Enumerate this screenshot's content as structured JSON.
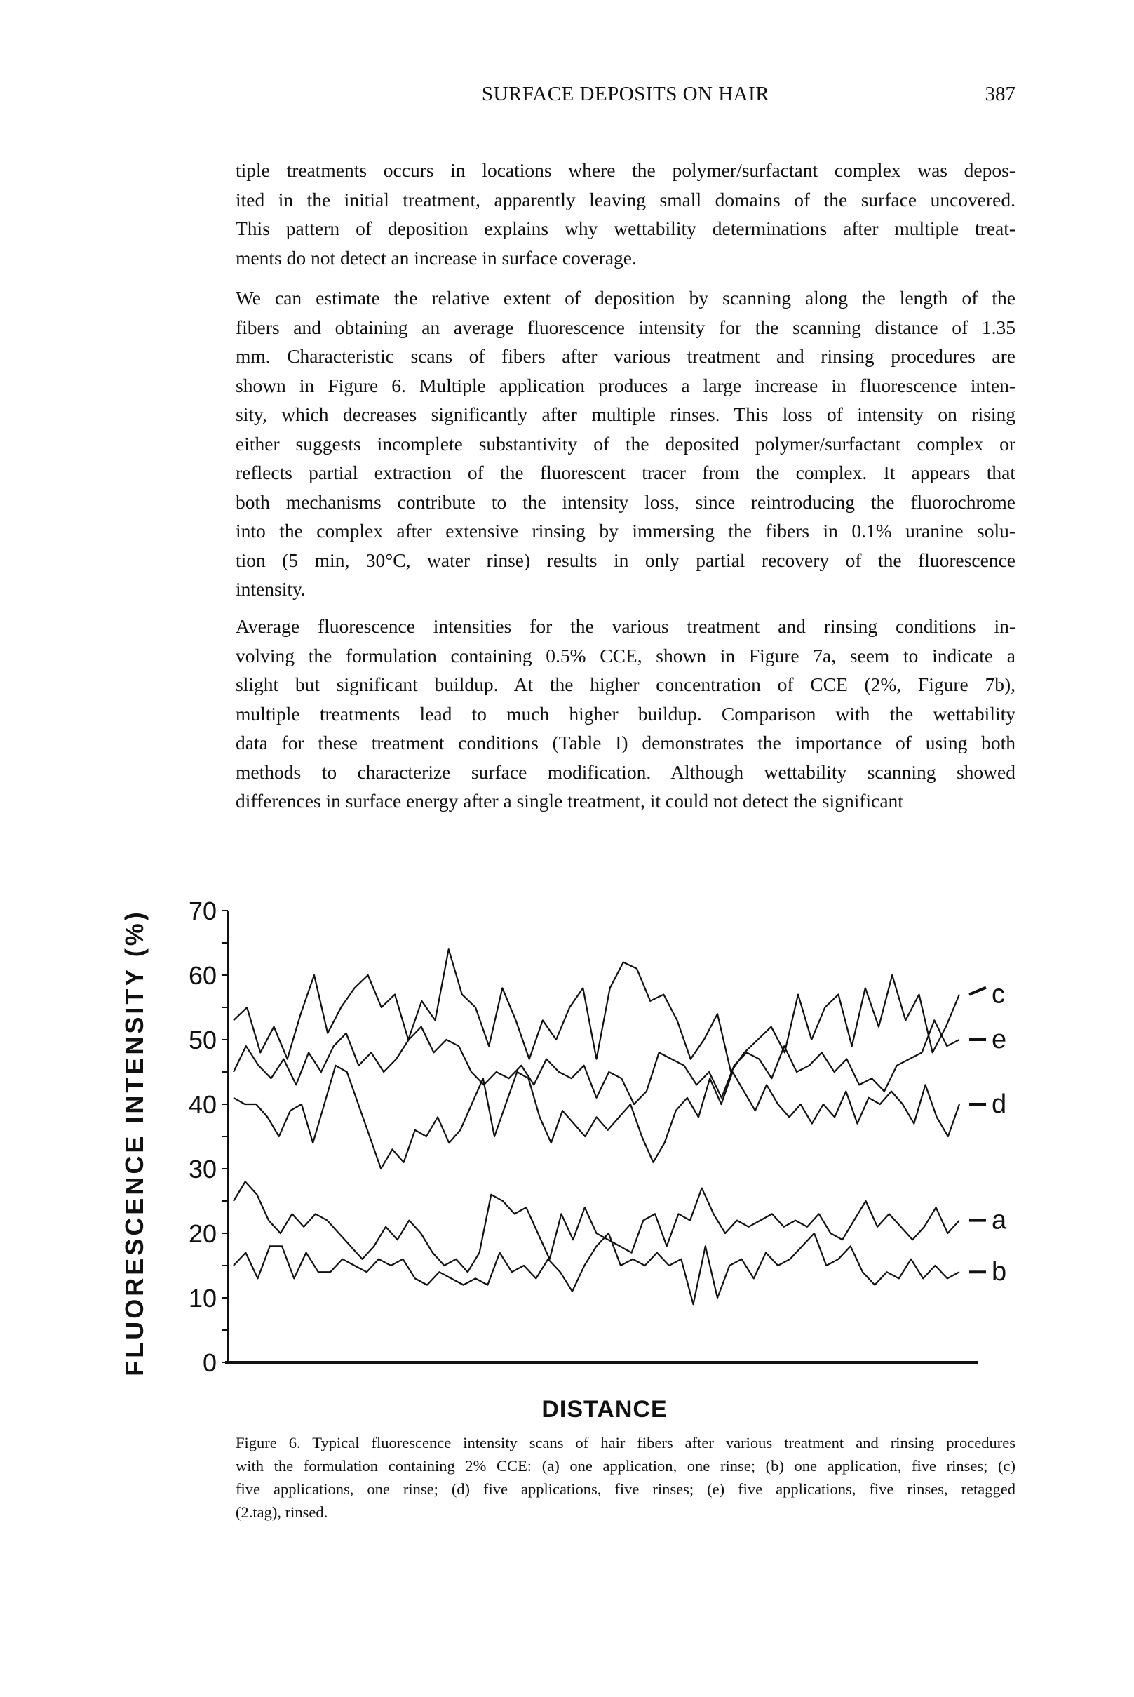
{
  "header": {
    "running_title": "SURFACE DEPOSITS ON HAIR",
    "page_number": "387"
  },
  "body": {
    "paragraphs": [
      [
        "tiple treatments occurs in locations where the polymer/surfactant complex was depos-",
        "ited in the initial treatment, apparently leaving small domains of the surface uncovered.",
        "This pattern of deposition explains why wettability determinations after multiple treat-",
        "ments do not detect an increase in surface coverage."
      ],
      [
        "We can estimate the relative extent of deposition by scanning along the length of the",
        "fibers and obtaining an average fluorescence intensity for the scanning distance of 1.35",
        "mm. Characteristic scans of fibers after various treatment and rinsing procedures are",
        "shown in Figure 6. Multiple application produces a large increase in fluorescence inten-",
        "sity, which decreases significantly after multiple rinses. This loss of intensity on rising",
        "either suggests incomplete substantivity of the deposited polymer/surfactant complex or",
        "reflects partial extraction of the fluorescent tracer from the complex. It appears that",
        "both mechanisms contribute to the intensity loss, since reintroducing the fluorochrome",
        "into the complex after extensive rinsing by immersing the fibers in 0.1% uranine solu-",
        "tion (5 min, 30°C, water rinse) results in only partial recovery of the fluorescence",
        "intensity."
      ],
      [
        "Average fluorescence intensities for the various treatment and rinsing conditions in-",
        "volving the formulation containing 0.5% CCE, shown in Figure 7a, seem to indicate a",
        "slight but significant buildup. At the higher concentration of CCE (2%, Figure 7b),",
        "multiple treatments lead to much higher buildup. Comparison with the wettability",
        "data for these treatment conditions (Table I) demonstrates the importance of using both",
        "methods to characterize surface modification. Although wettability scanning showed",
        "differences in surface energy after a single treatment, it could not detect the significant"
      ]
    ]
  },
  "figure": {
    "caption_lines": [
      "Figure 6.  Typical fluorescence intensity scans of hair fibers after various treatment and rinsing procedures",
      "with the formulation containing 2% CCE: (a) one application, one rinse; (b) one application, five rinses; (c)",
      "five applications, one rinse; (d) five applications, five rinses; (e) five applications, five rinses, retagged",
      "(2.tag), rinsed."
    ]
  },
  "chart_data": {
    "type": "line",
    "title": "",
    "xlabel": "DISTANCE",
    "ylabel": "FLUORESCENCE   INTENSITY   (%)",
    "ylim": [
      0,
      70
    ],
    "yticks": [
      0,
      10,
      20,
      30,
      40,
      50,
      60,
      70
    ],
    "grid": false,
    "legend": "inline labels at right end of each trace",
    "line_color": "#111111",
    "series": [
      {
        "name": "c",
        "values": [
          53,
          55,
          48,
          52,
          47,
          54,
          60,
          51,
          55,
          58,
          60,
          55,
          57,
          50,
          56,
          53,
          64,
          57,
          55,
          49,
          58,
          53,
          47,
          53,
          50,
          55,
          58,
          47,
          58,
          62,
          61,
          56,
          57,
          53,
          47,
          50,
          54,
          45,
          48,
          50,
          52,
          48,
          57,
          50,
          55,
          57,
          49,
          58,
          52,
          60,
          53,
          57,
          48,
          52,
          57
        ]
      },
      {
        "name": "e",
        "values": [
          45,
          49,
          46,
          44,
          47,
          43,
          48,
          45,
          49,
          51,
          46,
          48,
          45,
          47,
          50,
          52,
          48,
          50,
          49,
          45,
          43,
          45,
          44,
          46,
          43,
          47,
          45,
          44,
          46,
          41,
          45,
          44,
          40,
          42,
          48,
          47,
          46,
          43,
          45,
          41,
          46,
          48,
          47,
          44,
          49,
          45,
          46,
          48,
          45,
          47,
          43,
          44,
          42,
          46,
          47,
          48,
          53,
          49,
          50
        ]
      },
      {
        "name": "d",
        "values": [
          41,
          40,
          40,
          38,
          35,
          39,
          40,
          34,
          40,
          46,
          45,
          40,
          35,
          30,
          33,
          31,
          36,
          35,
          38,
          34,
          36,
          40,
          44,
          35,
          40,
          45,
          44,
          38,
          34,
          39,
          37,
          35,
          38,
          36,
          38,
          40,
          35,
          31,
          34,
          39,
          41,
          38,
          44,
          40,
          45,
          42,
          39,
          43,
          40,
          38,
          40,
          37,
          40,
          38,
          42,
          37,
          41,
          40,
          42,
          40,
          37,
          43,
          38,
          35,
          40
        ]
      },
      {
        "name": "a",
        "values": [
          25,
          28,
          26,
          22,
          20,
          23,
          21,
          23,
          22,
          20,
          18,
          16,
          18,
          21,
          19,
          22,
          20,
          17,
          15,
          16,
          14,
          17,
          26,
          25,
          23,
          24,
          20,
          16,
          23,
          19,
          24,
          20,
          19,
          18,
          17,
          22,
          23,
          18,
          23,
          22,
          27,
          23,
          20,
          22,
          21,
          22,
          23,
          21,
          22,
          21,
          23,
          20,
          19,
          22,
          25,
          21,
          23,
          21,
          19,
          21,
          24,
          20,
          22
        ]
      },
      {
        "name": "b",
        "values": [
          15,
          17,
          13,
          18,
          18,
          13,
          17,
          14,
          14,
          16,
          15,
          14,
          16,
          15,
          16,
          13,
          12,
          14,
          13,
          12,
          13,
          12,
          17,
          14,
          15,
          13,
          16,
          14,
          11,
          15,
          18,
          20,
          15,
          16,
          15,
          17,
          15,
          16,
          9,
          18,
          10,
          15,
          16,
          13,
          17,
          15,
          16,
          18,
          20,
          15,
          16,
          18,
          14,
          12,
          14,
          13,
          16,
          13,
          15,
          13,
          14
        ]
      }
    ]
  }
}
